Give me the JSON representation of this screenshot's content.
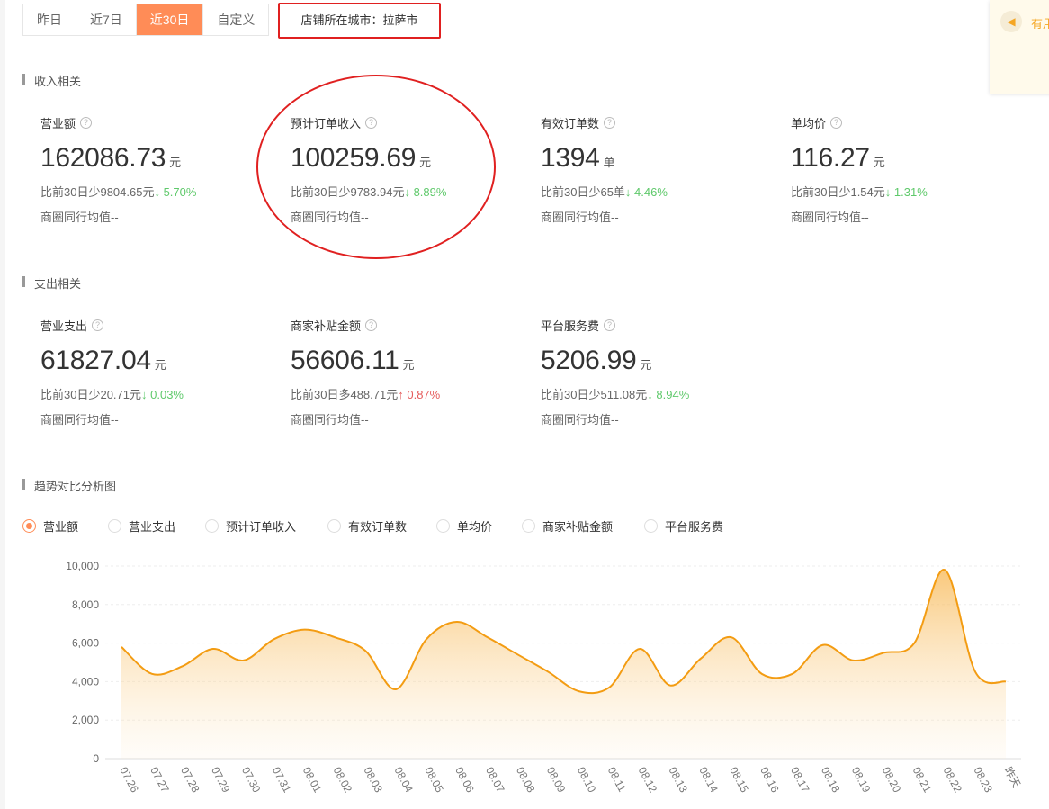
{
  "date_tabs": [
    {
      "label": "昨日"
    },
    {
      "label": "近7日"
    },
    {
      "label": "近30日",
      "active": true
    },
    {
      "label": "自定义"
    }
  ],
  "city_label": "店铺所在城市：拉萨市",
  "notice": {
    "icon": "megaphone-icon",
    "text": "有用"
  },
  "income": {
    "title": "收入相关",
    "metrics": [
      {
        "name": "营业额",
        "value": "162086.73",
        "unit": "元",
        "compare": "比前30日少9804.65元",
        "trend": "down",
        "pct": "5.70%",
        "avg": "商圈同行均值--"
      },
      {
        "name": "预计订单收入",
        "value": "100259.69",
        "unit": "元",
        "compare": "比前30日少9783.94元",
        "trend": "down",
        "pct": "8.89%",
        "avg": "商圈同行均值--"
      },
      {
        "name": "有效订单数",
        "value": "1394",
        "unit": "单",
        "compare": "比前30日少65单",
        "trend": "down",
        "pct": "4.46%",
        "avg": "商圈同行均值--"
      },
      {
        "name": "单均价",
        "value": "116.27",
        "unit": "元",
        "compare": "比前30日少1.54元",
        "trend": "down",
        "pct": "1.31%",
        "avg": "商圈同行均值--"
      }
    ]
  },
  "expense": {
    "title": "支出相关",
    "metrics": [
      {
        "name": "营业支出",
        "value": "61827.04",
        "unit": "元",
        "compare": "比前30日少20.71元",
        "trend": "down",
        "pct": "0.03%",
        "avg": "商圈同行均值--"
      },
      {
        "name": "商家补贴金额",
        "value": "56606.11",
        "unit": "元",
        "compare": "比前30日多488.71元",
        "trend": "up",
        "pct": "0.87%",
        "avg": "商圈同行均值--"
      },
      {
        "name": "平台服务费",
        "value": "5206.99",
        "unit": "元",
        "compare": "比前30日少511.08元",
        "trend": "down",
        "pct": "8.94%",
        "avg": "商圈同行均值--"
      }
    ]
  },
  "trend": {
    "title": "趋势对比分析图",
    "options": [
      "营业额",
      "营业支出",
      "预计订单收入",
      "有效订单数",
      "单均价",
      "商家补贴金额",
      "平台服务费"
    ],
    "selected": 0
  },
  "chart_data": {
    "type": "area",
    "series": [
      {
        "name": "营业额",
        "values": [
          5800,
          4400,
          4800,
          5700,
          5100,
          6200,
          6700,
          6300,
          5600,
          3600,
          6200,
          7100,
          6300,
          5400,
          4500,
          3500,
          3700,
          5700,
          3800,
          5200,
          6300,
          4400,
          4400,
          5900,
          5100,
          5500,
          6000,
          9800,
          4500,
          4000
        ]
      }
    ],
    "categories": [
      "07.26",
      "07.27",
      "07.28",
      "07.29",
      "07.30",
      "07.31",
      "08.01",
      "08.02",
      "08.03",
      "08.04",
      "08.05",
      "08.06",
      "08.07",
      "08.08",
      "08.09",
      "08.10",
      "08.11",
      "08.12",
      "08.13",
      "08.14",
      "08.15",
      "08.16",
      "08.17",
      "08.18",
      "08.19",
      "08.20",
      "08.21",
      "08.22",
      "08.23",
      "昨天"
    ],
    "yticks": [
      "0",
      "2,000",
      "4,000",
      "6,000",
      "8,000",
      "10,000"
    ],
    "ylim": [
      0,
      10000
    ],
    "color": "#f39c12"
  }
}
